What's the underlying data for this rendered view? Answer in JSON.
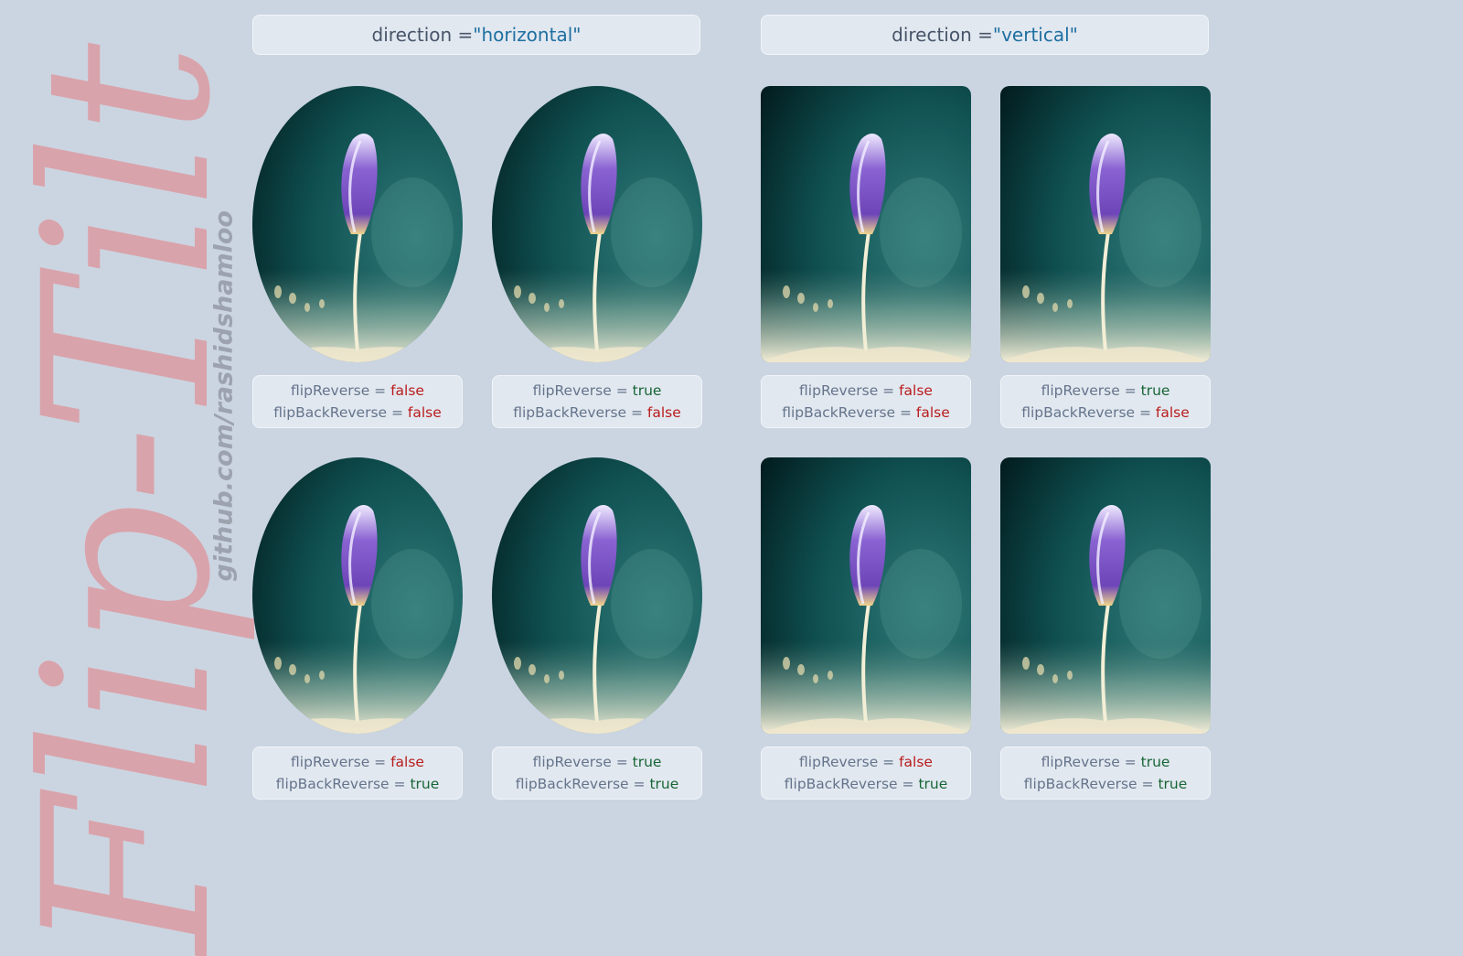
{
  "logo": {
    "text": "Flip-Tilt"
  },
  "repo_link": {
    "text": "github.com/rashidshamloo"
  },
  "groups": [
    {
      "label": "direction = ",
      "value": "\"horizontal\""
    },
    {
      "label": "direction = ",
      "value": "\"vertical\""
    }
  ],
  "captions": {
    "flip_label": "flipReverse = ",
    "back_label": "flipBackReverse = ",
    "false_text": "false",
    "true_text": "true"
  },
  "cards": [
    {
      "direction": "horizontal",
      "flipReverse": "false",
      "flipBackReverse": "false"
    },
    {
      "direction": "horizontal",
      "flipReverse": "true",
      "flipBackReverse": "false"
    },
    {
      "direction": "vertical",
      "flipReverse": "false",
      "flipBackReverse": "false"
    },
    {
      "direction": "vertical",
      "flipReverse": "true",
      "flipBackReverse": "false"
    },
    {
      "direction": "horizontal",
      "flipReverse": "false",
      "flipBackReverse": "true"
    },
    {
      "direction": "horizontal",
      "flipReverse": "true",
      "flipBackReverse": "true"
    },
    {
      "direction": "vertical",
      "flipReverse": "false",
      "flipBackReverse": "true"
    },
    {
      "direction": "vertical",
      "flipReverse": "true",
      "flipBackReverse": "true"
    }
  ],
  "image": {
    "subject": "purple crocus flower photo"
  },
  "colors": {
    "background": "#cbd5e1",
    "panel": "#e2e8f0",
    "value_blue": "#1e6fa0",
    "false_red": "#b91c1c",
    "true_green": "#166534",
    "logo_pink": "#d9a3ab"
  }
}
